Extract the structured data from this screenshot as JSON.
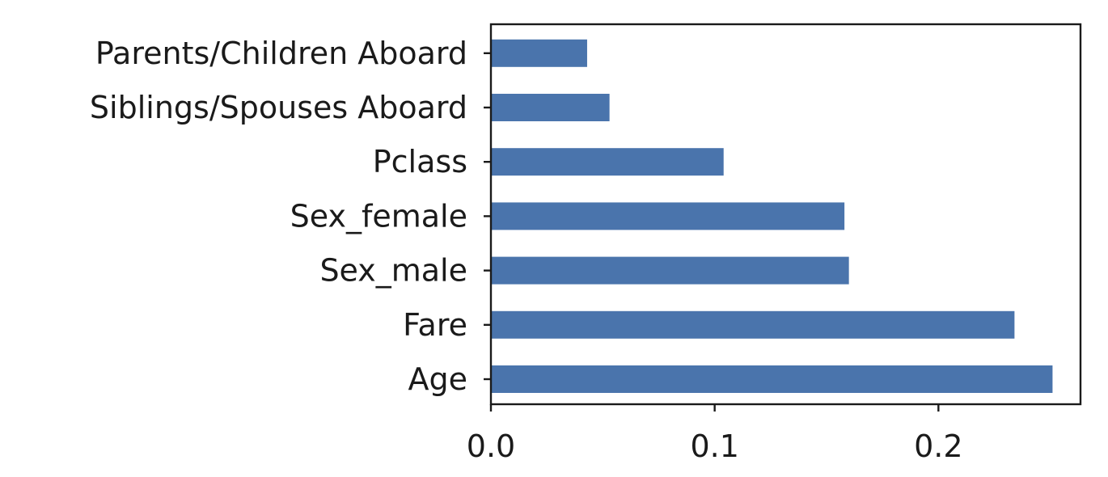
{
  "chart_data": {
    "type": "bar",
    "orientation": "horizontal",
    "categories": [
      "Age",
      "Fare",
      "Sex_male",
      "Sex_female",
      "Pclass",
      "Siblings/Spouses Aboard",
      "Parents/Children Aboard"
    ],
    "values": [
      0.251,
      0.234,
      0.16,
      0.158,
      0.104,
      0.053,
      0.043
    ],
    "xticks": [
      0.0,
      0.1,
      0.2
    ],
    "xtick_labels": [
      "0.0",
      "0.1",
      "0.2"
    ],
    "xlim": [
      0,
      0.2635
    ],
    "title": "",
    "xlabel": "",
    "ylabel": "",
    "grid": false,
    "bar_color": "#4a74ac",
    "axis_color": "#1a1a1a"
  }
}
